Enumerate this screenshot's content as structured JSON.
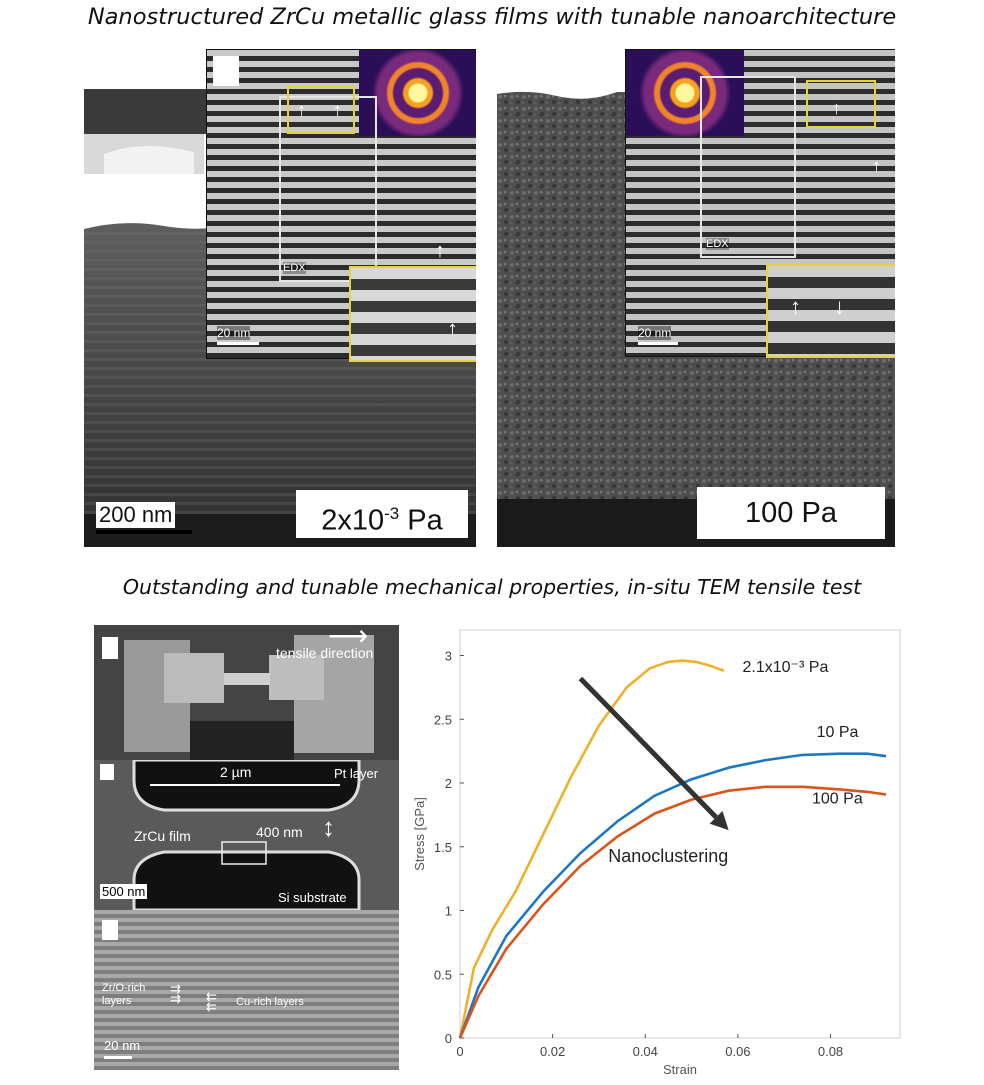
{
  "headings": {
    "top": "Nanostructured ZrCu metallic glass films with tunable nanoarchitecture",
    "bottom": "Outstanding and tunable mechanical properties, in-situ TEM tensile test"
  },
  "sem_left": {
    "scalebar": "200 nm",
    "pressure_base": "2x10",
    "pressure_exp": "-3",
    "pressure_unit": " Pa",
    "inset_edx": "EDX",
    "inset_scalebar": "20 nm"
  },
  "sem_right": {
    "pressure": "100 Pa",
    "inset_edx": "EDX",
    "inset_scalebar": "20 nm"
  },
  "tensile": {
    "direction_label": "tensile direction",
    "dimension_width": "2 µm",
    "pt_layer": "Pt layer",
    "zrcu_film": "ZrCu film",
    "thickness": "400 nm",
    "scalebar_mid": "500 nm",
    "si_substrate": "Si substrate",
    "zro_layers": "Zr/O-rich layers",
    "cu_layers": "Cu-rich layers",
    "scalebar_bottom": "20 nm"
  },
  "chart_data": {
    "type": "line",
    "xlabel": "Strain",
    "ylabel": "Stress [GPa]",
    "xlim": [
      0,
      0.095
    ],
    "ylim": [
      0,
      3.2
    ],
    "x_ticks": [
      0,
      0.02,
      0.04,
      0.06,
      0.08
    ],
    "x_tick_labels": [
      "0",
      "0.02",
      "0.04",
      "0.06",
      "0.08"
    ],
    "y_ticks": [
      0,
      0.5,
      1,
      1.5,
      2,
      2.5,
      3
    ],
    "y_tick_labels": [
      "0",
      "0.5",
      "1",
      "1.5",
      "2",
      "2.5",
      "3"
    ],
    "annotation": "Nanoclustering",
    "arrow": {
      "from": [
        0.026,
        2.82
      ],
      "to": [
        0.058,
        1.63
      ]
    },
    "series": [
      {
        "name": "2.1x10⁻³ Pa",
        "color": "#eeb12b",
        "x": [
          0,
          0.003,
          0.007,
          0.012,
          0.018,
          0.024,
          0.03,
          0.036,
          0.041,
          0.045,
          0.048,
          0.051,
          0.054,
          0.057
        ],
        "y": [
          0,
          0.55,
          0.85,
          1.15,
          1.6,
          2.05,
          2.45,
          2.75,
          2.9,
          2.95,
          2.96,
          2.95,
          2.92,
          2.88
        ]
      },
      {
        "name": "10 Pa",
        "color": "#1f77c4",
        "x": [
          0,
          0.004,
          0.01,
          0.018,
          0.026,
          0.034,
          0.042,
          0.05,
          0.058,
          0.066,
          0.074,
          0.082,
          0.088,
          0.092
        ],
        "y": [
          0,
          0.4,
          0.8,
          1.15,
          1.45,
          1.7,
          1.9,
          2.03,
          2.12,
          2.18,
          2.22,
          2.23,
          2.23,
          2.21
        ]
      },
      {
        "name": "100 Pa",
        "color": "#d9541a",
        "x": [
          0,
          0.004,
          0.01,
          0.018,
          0.026,
          0.034,
          0.042,
          0.05,
          0.058,
          0.066,
          0.074,
          0.082,
          0.088,
          0.092
        ],
        "y": [
          0,
          0.33,
          0.7,
          1.05,
          1.35,
          1.58,
          1.76,
          1.87,
          1.94,
          1.97,
          1.97,
          1.95,
          1.93,
          1.91
        ]
      }
    ],
    "series_label_positions": [
      {
        "x": 0.061,
        "y": 2.87
      },
      {
        "x": 0.077,
        "y": 2.36
      },
      {
        "x": 0.076,
        "y": 1.84
      }
    ]
  }
}
